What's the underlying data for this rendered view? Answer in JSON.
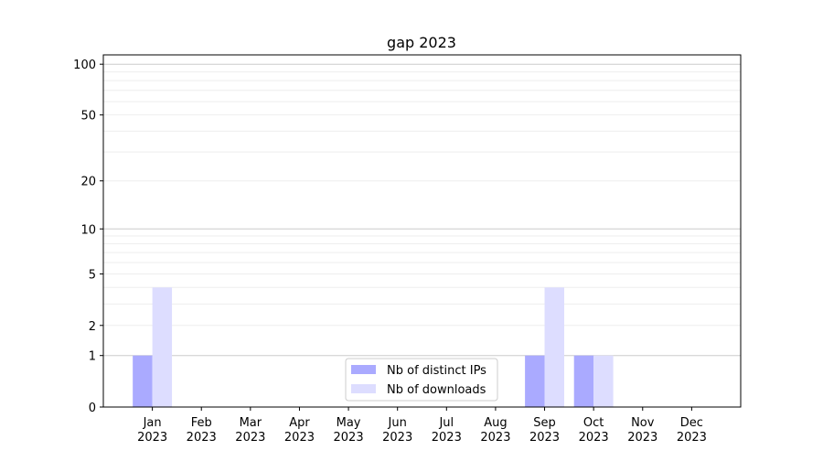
{
  "chart_data": {
    "type": "bar",
    "title": "gap 2023",
    "xlabel": "",
    "ylabel": "",
    "yscale": "log(1+y)",
    "ylim": [
      0,
      113.5
    ],
    "yticks": [
      0,
      1,
      2,
      5,
      10,
      20,
      50,
      100
    ],
    "ytick_labels": [
      "0",
      "1",
      "2",
      "5",
      "10",
      "20",
      "50",
      "100"
    ],
    "grid": true,
    "categories": [
      "Jan\n2023",
      "Feb\n2023",
      "Mar\n2023",
      "Apr\n2023",
      "May\n2023",
      "Jun\n2023",
      "Jul\n2023",
      "Aug\n2023",
      "Sep\n2023",
      "Oct\n2023",
      "Nov\n2023",
      "Dec\n2023"
    ],
    "series": [
      {
        "name": "Nb of distinct IPs",
        "color": "#aaaaff",
        "values": [
          1,
          0,
          0,
          0,
          0,
          0,
          0,
          0,
          1,
          1,
          0,
          0
        ]
      },
      {
        "name": "Nb of downloads",
        "color": "#ddddff",
        "values": [
          4,
          0,
          0,
          0,
          0,
          0,
          0,
          0,
          4,
          1,
          0,
          0
        ]
      }
    ],
    "legend": "bottom-center"
  }
}
